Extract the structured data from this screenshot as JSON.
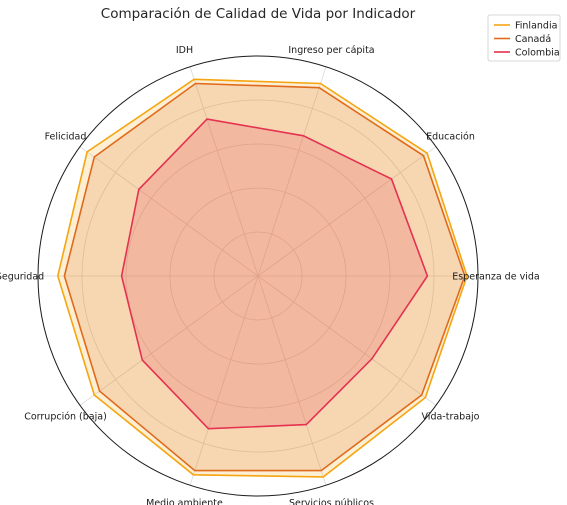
{
  "chart_data": {
    "type": "radar",
    "title": "Comparación de Calidad de Vida por Indicador",
    "axes": [
      "IDH",
      "Ingreso per cápita",
      "Educación",
      "Esperanza de vida",
      "Vida-trabajo",
      "Servicios públicos",
      "Medio ambiente",
      "Corrupción (baja)",
      "Seguridad",
      "Felicidad"
    ],
    "rmax": 100,
    "grid": true,
    "legend_position": "top-right",
    "series": [
      {
        "name": "Finlandia",
        "color": "#f5a511",
        "values": [
          94,
          92,
          95,
          95,
          94,
          96,
          95,
          92,
          91,
          96
        ]
      },
      {
        "name": "Canadá",
        "color": "#e06a1c",
        "values": [
          92,
          90,
          93,
          94,
          92,
          93,
          93,
          89,
          88,
          92
        ]
      },
      {
        "name": "Colombia",
        "color": "#e43250",
        "values": [
          75,
          67,
          75,
          77,
          64,
          71,
          73,
          65,
          62,
          67
        ]
      }
    ]
  }
}
